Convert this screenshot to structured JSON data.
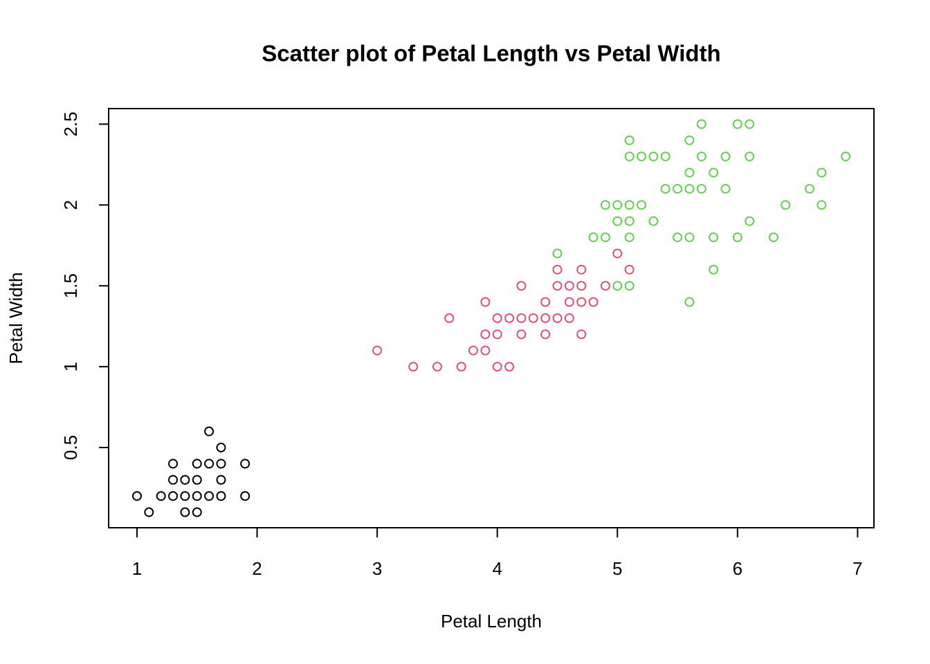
{
  "chart_data": {
    "type": "scatter",
    "title": "Scatter plot of Petal Length vs Petal Width",
    "x_label": "Petal Length",
    "y_label": "Petal Width",
    "xlim": [
      0.764,
      7.136
    ],
    "ylim": [
      0.004,
      2.596
    ],
    "xticks": [
      1,
      2,
      3,
      4,
      5,
      6,
      7
    ],
    "yticks": [
      0.5,
      1.0,
      1.5,
      2.0,
      2.5
    ],
    "grid": false,
    "series": [
      {
        "color": "#000000",
        "x": [
          1.0,
          1.2,
          1.3,
          1.4,
          1.5,
          1.6,
          1.7,
          1.9,
          1.1,
          1.4,
          1.5,
          1.3,
          1.4,
          1.5,
          1.7,
          1.3,
          1.5,
          1.6,
          1.7,
          1.9,
          1.7,
          1.6
        ],
        "values": [
          0.2,
          0.2,
          0.2,
          0.2,
          0.2,
          0.2,
          0.2,
          0.2,
          0.1,
          0.1,
          0.1,
          0.3,
          0.3,
          0.3,
          0.3,
          0.4,
          0.4,
          0.4,
          0.4,
          0.4,
          0.5,
          0.6
        ]
      },
      {
        "color": "#DF536B",
        "x": [
          3.3,
          3.5,
          3.7,
          4.0,
          4.1,
          3.0,
          3.8,
          3.9,
          3.9,
          4.0,
          4.2,
          4.4,
          4.7,
          3.6,
          4.0,
          4.1,
          4.2,
          4.3,
          4.4,
          4.5,
          4.6,
          3.9,
          4.4,
          4.6,
          4.7,
          4.8,
          4.2,
          4.5,
          4.6,
          4.7,
          4.9,
          4.5,
          4.7,
          5.1,
          5.0
        ],
        "values": [
          1.0,
          1.0,
          1.0,
          1.0,
          1.0,
          1.1,
          1.1,
          1.1,
          1.2,
          1.2,
          1.2,
          1.2,
          1.2,
          1.3,
          1.3,
          1.3,
          1.3,
          1.3,
          1.3,
          1.3,
          1.3,
          1.4,
          1.4,
          1.4,
          1.4,
          1.4,
          1.5,
          1.5,
          1.5,
          1.5,
          1.5,
          1.6,
          1.6,
          1.6,
          1.7
        ]
      },
      {
        "color": "#61D04F",
        "x": [
          5.6,
          5.0,
          5.1,
          5.8,
          4.5,
          4.8,
          4.9,
          5.1,
          5.5,
          5.6,
          5.8,
          6.0,
          6.3,
          5.0,
          5.1,
          5.3,
          6.1,
          4.9,
          5.0,
          5.1,
          5.2,
          6.4,
          6.7,
          5.4,
          5.5,
          5.6,
          5.7,
          5.9,
          6.6,
          5.6,
          5.8,
          6.7,
          5.1,
          5.2,
          5.3,
          5.4,
          5.7,
          5.9,
          6.1,
          6.9,
          5.1,
          5.6,
          5.7,
          6.0,
          6.1
        ],
        "values": [
          1.4,
          1.5,
          1.5,
          1.6,
          1.7,
          1.8,
          1.8,
          1.8,
          1.8,
          1.8,
          1.8,
          1.8,
          1.8,
          1.9,
          1.9,
          1.9,
          1.9,
          2.0,
          2.0,
          2.0,
          2.0,
          2.0,
          2.0,
          2.1,
          2.1,
          2.1,
          2.1,
          2.1,
          2.1,
          2.2,
          2.2,
          2.2,
          2.3,
          2.3,
          2.3,
          2.3,
          2.3,
          2.3,
          2.3,
          2.3,
          2.4,
          2.4,
          2.5,
          2.5,
          2.5
        ]
      }
    ]
  }
}
